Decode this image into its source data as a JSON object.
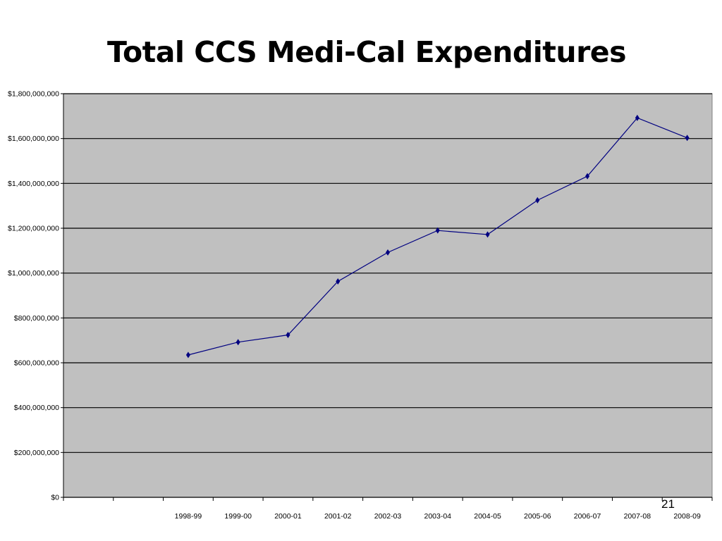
{
  "slide": {
    "title": "Total CCS Medi-Cal Expenditures",
    "page_number": "21"
  },
  "chart_data": {
    "type": "line",
    "title": "Total CCS Medi-Cal Expenditures",
    "xlabel": "",
    "ylabel": "",
    "categories": [
      "",
      "",
      "1998-99",
      "1999-00",
      "2000-01",
      "2001-02",
      "2002-03",
      "2003-04",
      "2004-05",
      "2005-06",
      "2006-07",
      "2007-08",
      "2008-09"
    ],
    "series": [
      {
        "values": [
          null,
          null,
          635000000,
          692000000,
          724000000,
          963000000,
          1092000000,
          1190000000,
          1172000000,
          1325000000,
          1432000000,
          1692000000,
          1603000000
        ]
      }
    ],
    "ylim": [
      0,
      1800000000
    ],
    "yticks": [
      0,
      200000000,
      400000000,
      600000000,
      800000000,
      1000000000,
      1200000000,
      1400000000,
      1600000000,
      1800000000
    ],
    "ytick_labels": [
      "$0",
      "$200,000,000",
      "$400,000,000",
      "$600,000,000",
      "$800,000,000",
      "$1,000,000,000",
      "$1,200,000,000",
      "$1,400,000,000",
      "$1,600,000,000",
      "$1,800,000,000"
    ],
    "grid": true,
    "legend": "none",
    "colors": {
      "plot_background": "#c0c0c0",
      "line": "#000080",
      "marker": "#000080",
      "gridline": "#000000"
    }
  }
}
